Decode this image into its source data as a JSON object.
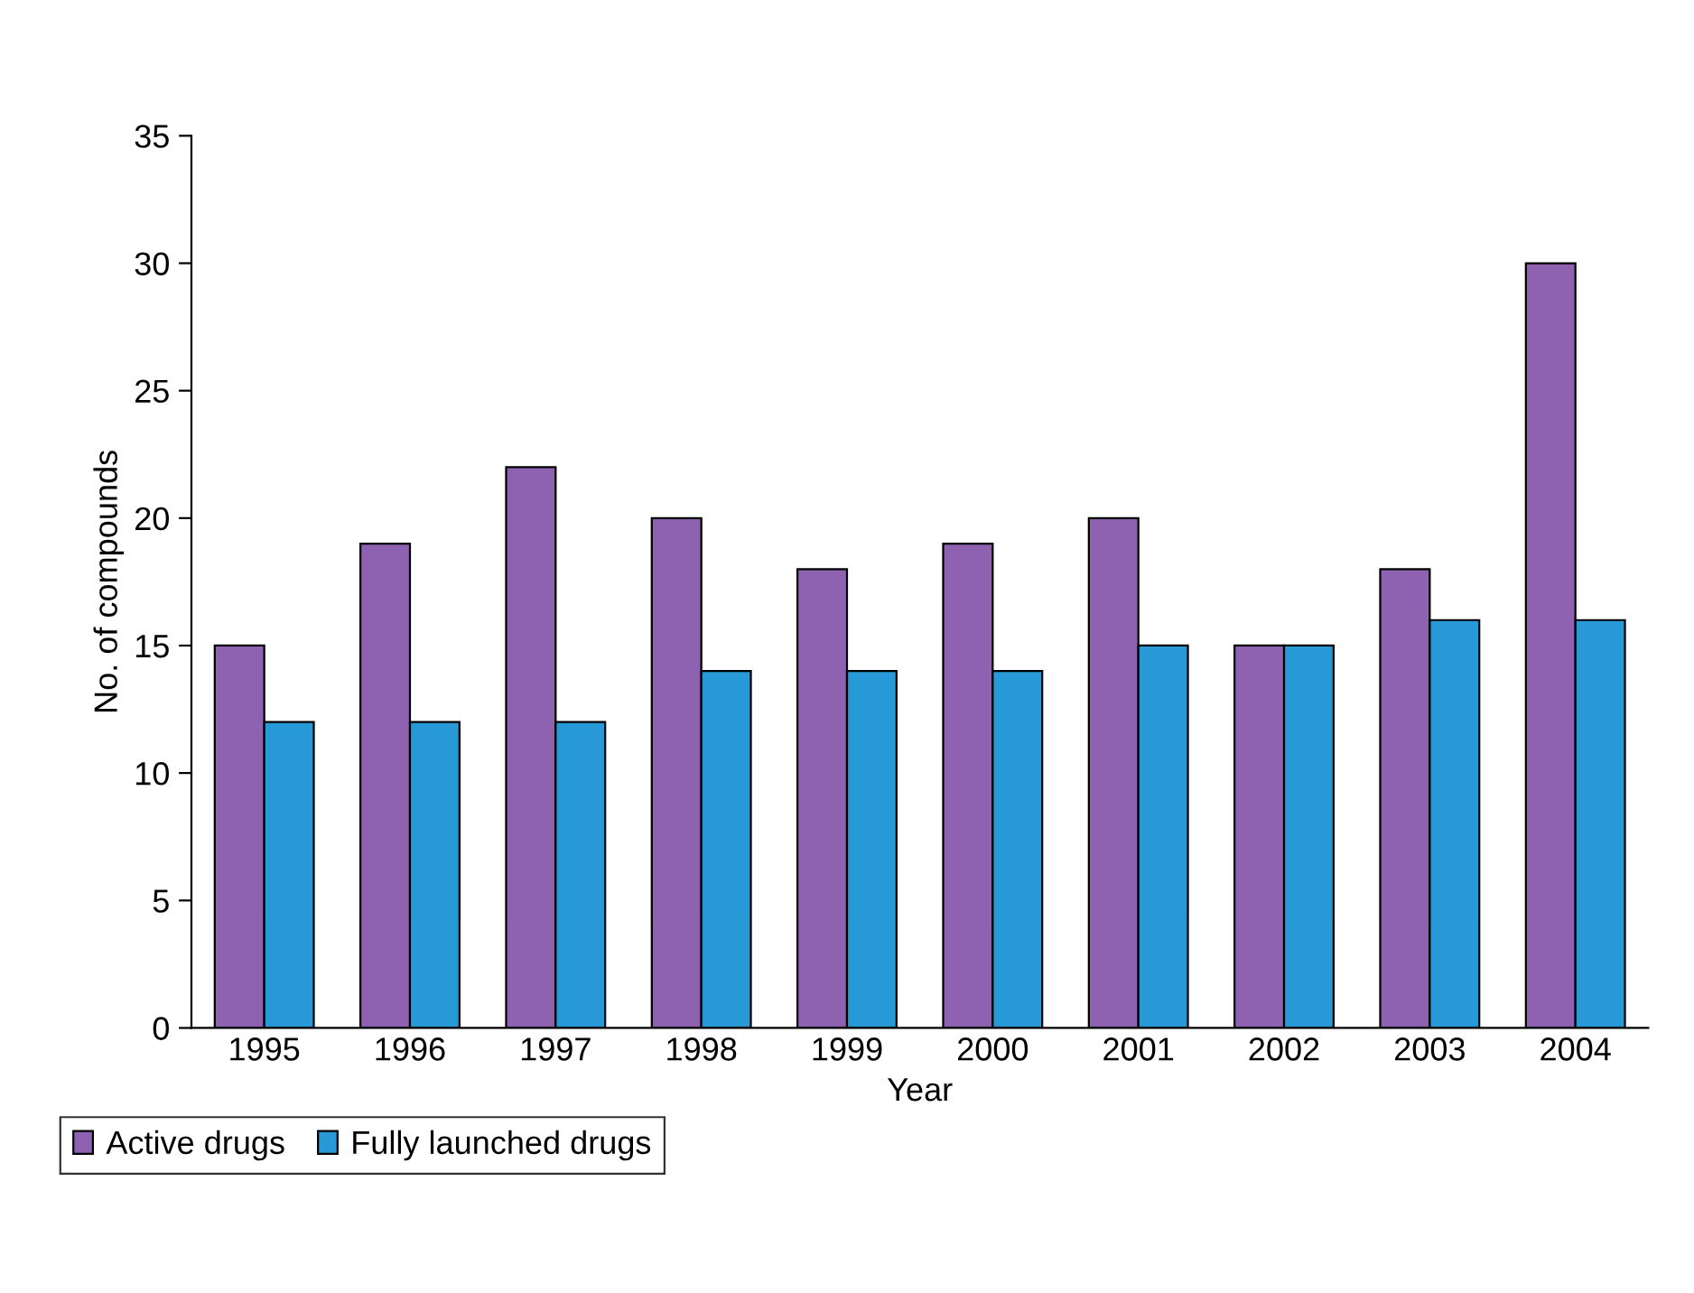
{
  "chart_data": {
    "type": "bar",
    "xlabel": "Year",
    "ylabel": "No. of compounds",
    "categories": [
      "1995",
      "1996",
      "1997",
      "1998",
      "1999",
      "2000",
      "2001",
      "2002",
      "2003",
      "2004"
    ],
    "series": [
      {
        "name": "Active drugs",
        "color": "#8e62b0",
        "values": [
          15,
          19,
          22,
          20,
          18,
          19,
          20,
          15,
          18,
          30
        ]
      },
      {
        "name": "Fully launched drugs",
        "color": "#2699d6",
        "values": [
          12,
          12,
          12,
          14,
          14,
          14,
          15,
          15,
          16,
          16
        ]
      }
    ],
    "ylim": [
      0,
      35
    ],
    "yticks": [
      0,
      5,
      10,
      15,
      20,
      25,
      30,
      35
    ],
    "grid": false,
    "legend": "bottom left"
  }
}
